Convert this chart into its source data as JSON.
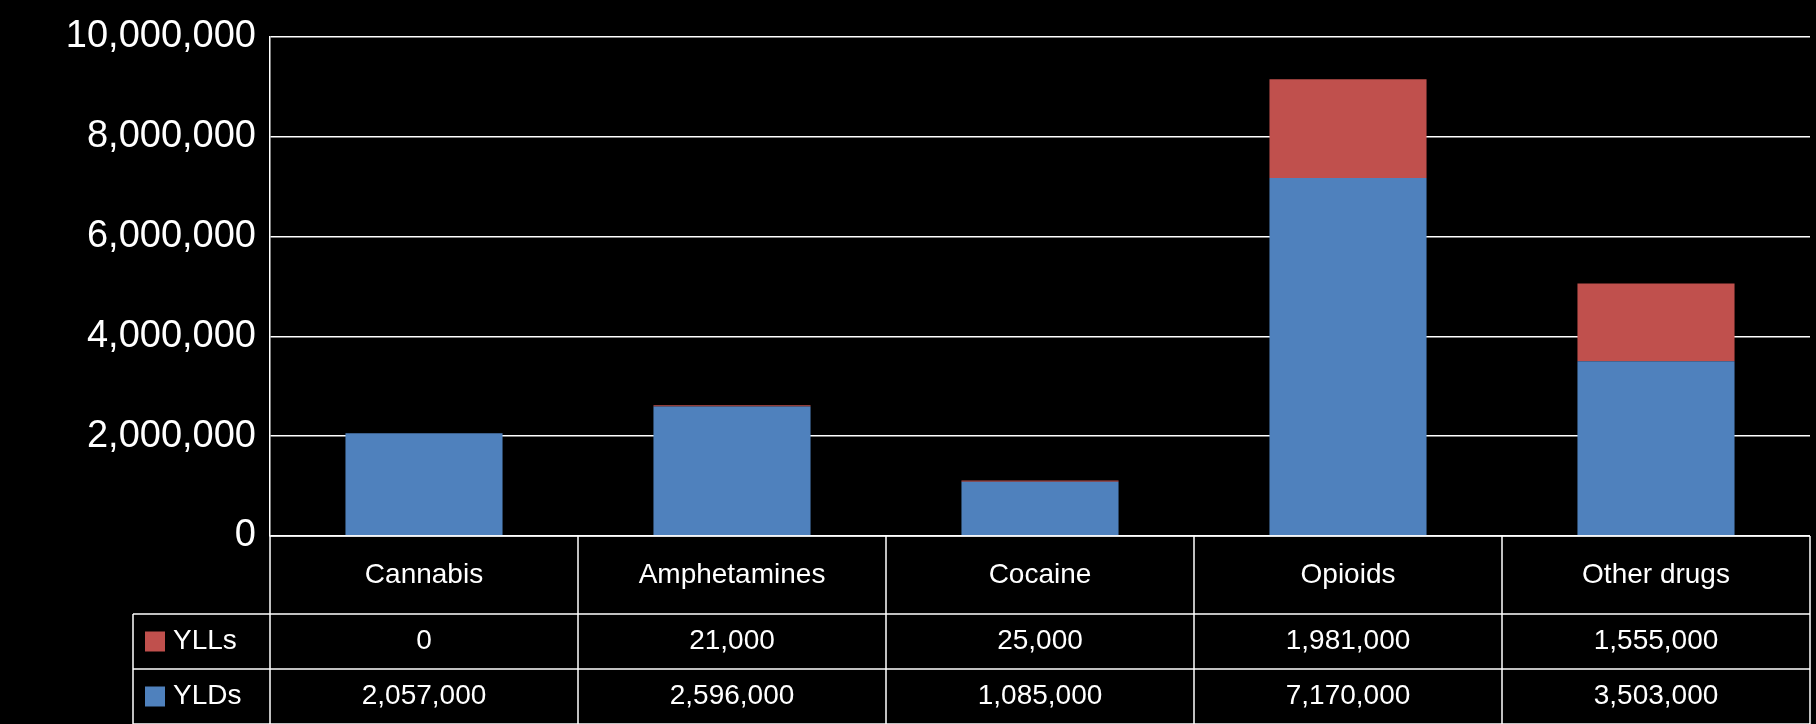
{
  "chart_data": {
    "type": "bar",
    "stacked": true,
    "categories": [
      "Cannabis",
      "Amphetamines",
      "Cocaine",
      "Opioids",
      "Other drugs"
    ],
    "series": [
      {
        "name": "YLDs",
        "color": "#4f81bd",
        "values": [
          2057000,
          2596000,
          1085000,
          7170000,
          3503000
        ],
        "value_labels": [
          "2,057,000",
          "2,596,000",
          "1,085,000",
          "7,170,000",
          "3,503,000"
        ]
      },
      {
        "name": "YLLs",
        "color": "#c0504d",
        "values": [
          0,
          21000,
          25000,
          1981000,
          1555000
        ],
        "value_labels": [
          "0",
          "21,000",
          "25,000",
          "1,981,000",
          "1,555,000"
        ]
      }
    ],
    "ylim": [
      0,
      10000000
    ],
    "yticks": [
      0,
      {
        "value": 2000000,
        "label": "2,000,000"
      },
      {
        "value": 4000000,
        "label": "4,000,000"
      },
      {
        "value": 6000000,
        "label": "6,000,000"
      },
      {
        "value": 8000000,
        "label": "8,000,000"
      },
      {
        "value": 10000000,
        "label": "10,000,000"
      }
    ],
    "grid": "y",
    "legend": "bottom"
  }
}
